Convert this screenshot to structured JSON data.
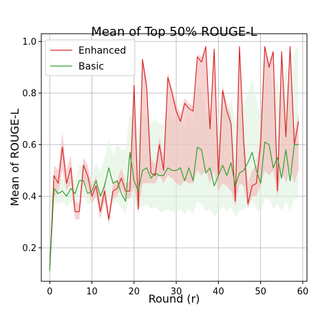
{
  "chart_data": {
    "type": "line",
    "title": "Mean of Top 50% ROUGE-L",
    "xlabel": "Round (r)",
    "ylabel": "Mean of ROUGE-L",
    "xlim": [
      -2,
      61
    ],
    "ylim": [
      0.07,
      1.03
    ],
    "xticks": [
      0,
      10,
      20,
      30,
      40,
      50,
      60
    ],
    "yticks": [
      0.2,
      0.4,
      0.6,
      0.8,
      1.0
    ],
    "xtick_labels": [
      "0",
      "10",
      "20",
      "30",
      "40",
      "50",
      "60"
    ],
    "ytick_labels": [
      "0.2",
      "0.4",
      "0.6",
      "0.8",
      "1.0"
    ],
    "grid": true,
    "legend_position": "top-left",
    "x": [
      0,
      1,
      2,
      3,
      4,
      5,
      6,
      7,
      8,
      9,
      10,
      11,
      12,
      13,
      14,
      15,
      16,
      17,
      18,
      19,
      20,
      21,
      22,
      23,
      24,
      25,
      26,
      27,
      28,
      29,
      30,
      31,
      32,
      33,
      34,
      35,
      36,
      37,
      38,
      39,
      40,
      41,
      42,
      43,
      44,
      45,
      46,
      47,
      48,
      49,
      50,
      51,
      52,
      53,
      54,
      55,
      56,
      57,
      58,
      59
    ],
    "series": [
      {
        "name": "Enhanced",
        "color": "#d62728",
        "band_color": "#f4b6b6",
        "values": [
          0.12,
          0.48,
          0.45,
          0.59,
          0.45,
          0.51,
          0.34,
          0.34,
          0.52,
          0.48,
          0.4,
          0.44,
          0.34,
          0.42,
          0.31,
          0.42,
          0.43,
          0.47,
          0.42,
          0.42,
          0.83,
          0.35,
          0.93,
          0.82,
          0.49,
          0.48,
          0.6,
          0.5,
          0.86,
          0.8,
          0.73,
          0.69,
          0.76,
          0.74,
          0.73,
          0.94,
          0.92,
          0.98,
          0.66,
          0.97,
          0.48,
          0.81,
          0.73,
          0.68,
          0.38,
          0.98,
          0.61,
          0.37,
          0.44,
          0.45,
          0.6,
          0.98,
          0.9,
          0.96,
          0.42,
          0.96,
          0.63,
          0.98,
          0.6,
          0.69
        ],
        "band_lower": [
          0.11,
          0.4,
          0.41,
          0.5,
          0.42,
          0.45,
          0.31,
          0.31,
          0.46,
          0.43,
          0.37,
          0.4,
          0.31,
          0.38,
          0.29,
          0.39,
          0.4,
          0.43,
          0.39,
          0.39,
          0.44,
          0.33,
          0.45,
          0.45,
          0.45,
          0.45,
          0.48,
          0.45,
          0.48,
          0.47,
          0.45,
          0.44,
          0.46,
          0.45,
          0.45,
          0.5,
          0.48,
          0.5,
          0.45,
          0.5,
          0.42,
          0.45,
          0.44,
          0.42,
          0.36,
          0.45,
          0.44,
          0.35,
          0.4,
          0.4,
          0.44,
          0.5,
          0.48,
          0.5,
          0.4,
          0.5,
          0.45,
          0.5,
          0.45,
          0.5
        ],
        "band_upper": [
          0.13,
          0.52,
          0.5,
          0.65,
          0.5,
          0.56,
          0.38,
          0.37,
          0.55,
          0.52,
          0.44,
          0.48,
          0.38,
          0.46,
          0.34,
          0.45,
          0.46,
          0.51,
          0.45,
          0.46,
          0.85,
          0.4,
          0.94,
          0.85,
          0.55,
          0.52,
          0.63,
          0.55,
          0.88,
          0.82,
          0.76,
          0.72,
          0.78,
          0.76,
          0.75,
          0.95,
          0.94,
          0.98,
          0.7,
          0.98,
          0.55,
          0.83,
          0.76,
          0.71,
          0.45,
          0.98,
          0.65,
          0.45,
          0.5,
          0.52,
          0.64,
          0.98,
          0.92,
          0.97,
          0.48,
          0.97,
          0.67,
          0.98,
          0.65,
          0.72
        ]
      },
      {
        "name": "Basic",
        "color": "#2ca02c",
        "band_color": "#dff2df",
        "values": [
          0.11,
          0.43,
          0.41,
          0.42,
          0.4,
          0.43,
          0.41,
          0.46,
          0.46,
          0.41,
          0.42,
          0.46,
          0.4,
          0.44,
          0.51,
          0.45,
          0.46,
          0.41,
          0.38,
          0.57,
          0.46,
          0.42,
          0.5,
          0.51,
          0.47,
          0.49,
          0.48,
          0.48,
          0.51,
          0.5,
          0.5,
          0.51,
          0.46,
          0.51,
          0.46,
          0.59,
          0.58,
          0.49,
          0.51,
          0.44,
          0.48,
          0.52,
          0.48,
          0.53,
          0.44,
          0.49,
          0.5,
          0.53,
          0.57,
          0.5,
          0.45,
          0.61,
          0.6,
          0.51,
          0.55,
          0.47,
          0.58,
          0.46,
          0.6,
          0.6
        ],
        "band_lower": [
          0.11,
          0.38,
          0.37,
          0.38,
          0.36,
          0.38,
          0.36,
          0.4,
          0.4,
          0.37,
          0.37,
          0.4,
          0.35,
          0.38,
          0.4,
          0.37,
          0.38,
          0.35,
          0.33,
          0.4,
          0.38,
          0.35,
          0.36,
          0.37,
          0.35,
          0.36,
          0.34,
          0.34,
          0.35,
          0.34,
          0.34,
          0.35,
          0.33,
          0.35,
          0.33,
          0.38,
          0.37,
          0.34,
          0.35,
          0.32,
          0.34,
          0.36,
          0.34,
          0.36,
          0.32,
          0.34,
          0.35,
          0.36,
          0.38,
          0.35,
          0.33,
          0.39,
          0.39,
          0.35,
          0.37,
          0.34,
          0.38,
          0.34,
          0.39,
          0.39
        ],
        "band_upper": [
          0.12,
          0.47,
          0.46,
          0.47,
          0.45,
          0.48,
          0.46,
          0.52,
          0.52,
          0.47,
          0.48,
          0.53,
          0.5,
          0.55,
          0.62,
          0.56,
          0.6,
          0.58,
          0.58,
          0.72,
          0.7,
          0.66,
          0.72,
          0.72,
          0.68,
          0.7,
          0.68,
          0.68,
          0.72,
          0.7,
          0.7,
          0.72,
          0.66,
          0.74,
          0.68,
          0.82,
          0.82,
          0.72,
          0.75,
          0.66,
          0.72,
          0.76,
          0.72,
          0.78,
          0.68,
          0.74,
          0.76,
          0.8,
          0.86,
          0.78,
          0.7,
          0.92,
          0.92,
          0.78,
          0.86,
          0.72,
          0.92,
          0.72,
          0.96,
          0.98
        ]
      }
    ]
  }
}
